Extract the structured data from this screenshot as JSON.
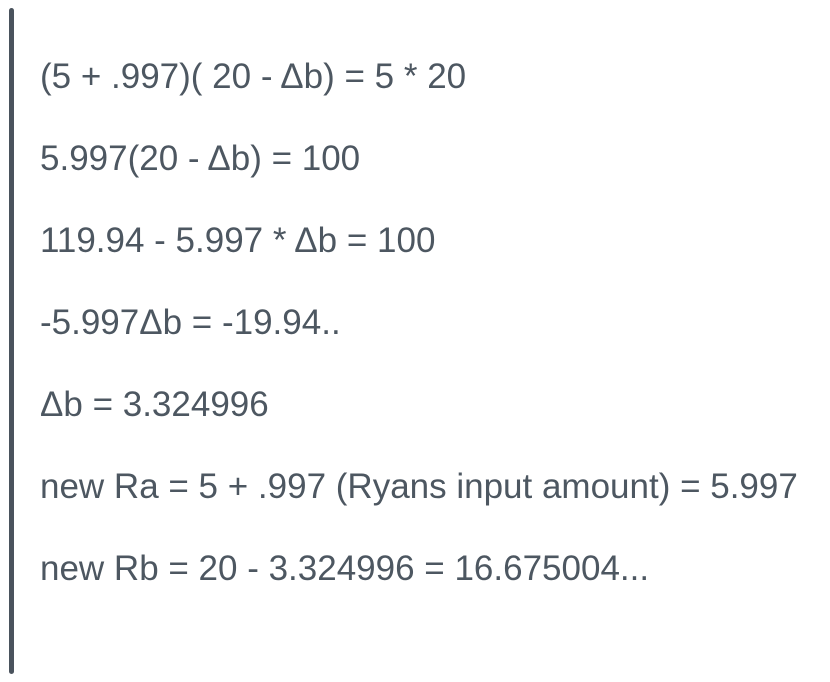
{
  "colors": {
    "background": "#ffffff",
    "text": "#4d5761",
    "quote_bar": "#4a535d"
  },
  "quote": {
    "lines": [
      "(5 + .997)( 20 - Δb) = 5 * 20",
      "5.997(20 - Δb) = 100",
      "119.94 - 5.997 * Δb = 100",
      "-5.997Δb = -19.94..",
      "Δb = 3.324996",
      "new Ra = 5 + .997 (Ryans input amount) = 5.997",
      "new Rb = 20 - 3.324996 = 16.675004..."
    ]
  }
}
